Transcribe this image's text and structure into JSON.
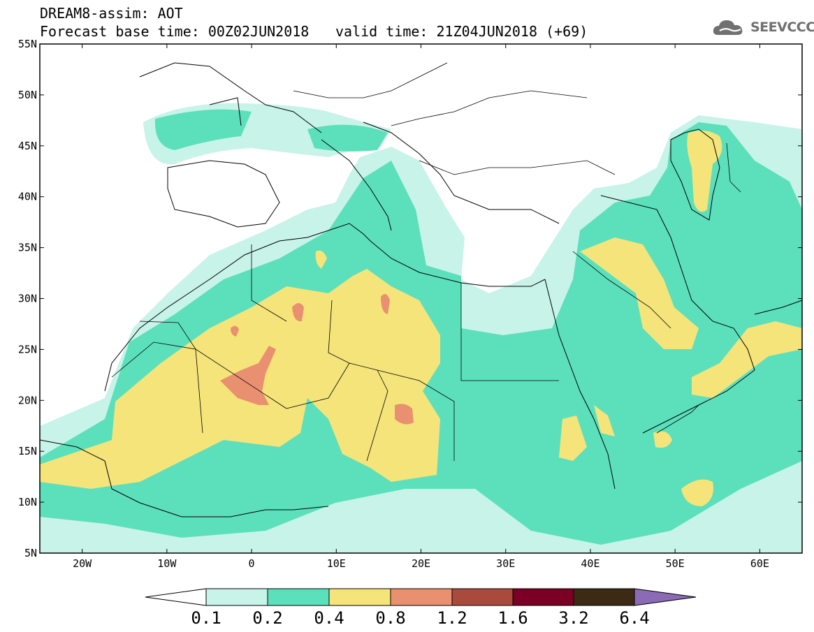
{
  "header": {
    "line1": "DREAM8-assim: AOT",
    "line2": "Forecast base time: 00Z02JUN2018",
    "line3": "valid time: 21Z04JUN2018 (+69)"
  },
  "logo": {
    "text": "SEEVCCC",
    "icon": "cloud-icon"
  },
  "map": {
    "lat_labels": [
      "55N",
      "50N",
      "45N",
      "40N",
      "35N",
      "30N",
      "25N",
      "20N",
      "15N",
      "10N",
      "5N"
    ],
    "lon_labels": [
      "20W",
      "10W",
      "0",
      "10E",
      "20E",
      "30E",
      "40E",
      "50E",
      "60E"
    ],
    "lon_range": [
      -25,
      65
    ],
    "lat_range": [
      5,
      55
    ]
  },
  "colorbar": {
    "tick_labels": [
      "0.1",
      "0.2",
      "0.4",
      "0.8",
      "1.2",
      "1.6",
      "3.2",
      "6.4"
    ],
    "colors": [
      "#ffffff",
      "#c8f3e9",
      "#5ce0bc",
      "#f5e47a",
      "#e99071",
      "#a84b3c",
      "#7a0025",
      "#3c2a14",
      "#8b6bb5"
    ]
  },
  "legend_colors": {
    "land_outline": "#000000",
    "level_0_1_0_2": "#c8f3e9",
    "level_0_2_0_4": "#5ce0bc",
    "level_0_4_0_8": "#f5e47a",
    "level_0_8_1_2": "#e99071"
  }
}
